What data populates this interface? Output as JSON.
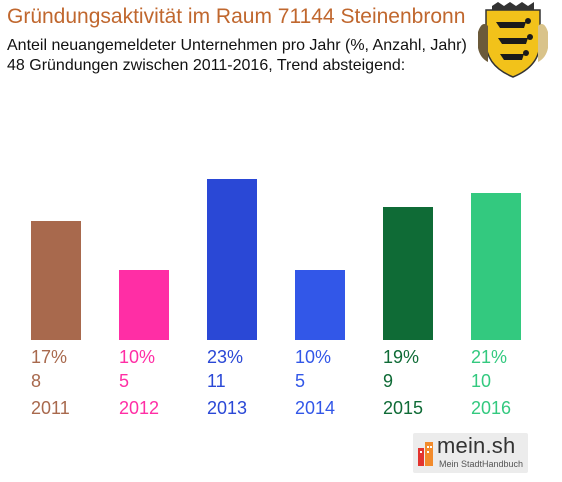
{
  "title": "Gründungsaktivität im Raum 71144 Steinenbronn",
  "subtitle_1": "Anteil neuangemeldeter Unternehmen pro Jahr (%, Anzahl, Jahr)",
  "subtitle_2": "48 Gründungen zwischen 2011-2016, Trend absteigend:",
  "logo": {
    "name": "mein.sh",
    "tagline": "Mein StadtHandbuch"
  },
  "colors": {
    "title": "#c0672e",
    "bars": [
      "#a8694d",
      "#ff2ea5",
      "#2a48d6",
      "#3257e8",
      "#0f6b36",
      "#33c97f"
    ]
  },
  "chart_data": {
    "type": "bar",
    "categories": [
      "2011",
      "2012",
      "2013",
      "2014",
      "2015",
      "2016"
    ],
    "percent_labels": [
      "17%",
      "10%",
      "23%",
      "10%",
      "19%",
      "21%"
    ],
    "count_labels": [
      "8",
      "5",
      "11",
      "5",
      "9",
      "10"
    ],
    "values": [
      17,
      10,
      23,
      10,
      19,
      21
    ],
    "counts": [
      8,
      5,
      11,
      5,
      9,
      10
    ],
    "unit": "%",
    "grid": false
  }
}
